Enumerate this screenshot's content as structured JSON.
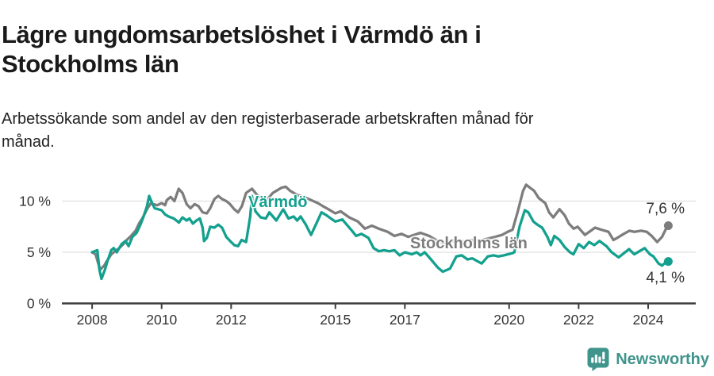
{
  "colors": {
    "grid": "#e0e0e0",
    "axis": "#3c3c3c",
    "axis_text": "#333333",
    "title_text": "#1a1a1a",
    "brand_teal": "#3F948C"
  },
  "footer": {
    "brand": "Newsworthy"
  },
  "chart_data": {
    "type": "line",
    "title_line1": "Lägre ungdomsarbetslöshet i Värmdö än i",
    "title_line2": "Stockholms län",
    "subtitle_line1": "Arbetssökande som andel av den registerbaserade arbetskraften månad för",
    "subtitle_line2": "månad.",
    "xlabel": "",
    "ylabel": "",
    "grid": "horizontal",
    "legend_position": "inline-labels",
    "xlim": [
      2007.13,
      2025.37
    ],
    "ylim": [
      0,
      12.4
    ],
    "x_ticks": [
      2008,
      2010,
      2012,
      2015,
      2017,
      2020,
      2022,
      2024
    ],
    "y_ticks": [
      0,
      5,
      10
    ],
    "y_tick_labels": [
      "0 %",
      "5 %",
      "10 %"
    ],
    "series": [
      {
        "name": "Värmdö",
        "color": "#13A08E",
        "end_label": "4,1 %",
        "end_value": 4.1,
        "points": [
          [
            2008.0,
            5.0
          ],
          [
            2008.08,
            5.1
          ],
          [
            2008.15,
            5.2
          ],
          [
            2008.21,
            3.3
          ],
          [
            2008.27,
            2.4
          ],
          [
            2008.37,
            3.3
          ],
          [
            2008.43,
            4.0
          ],
          [
            2008.55,
            5.2
          ],
          [
            2008.62,
            5.4
          ],
          [
            2008.71,
            5.0
          ],
          [
            2008.85,
            5.8
          ],
          [
            2008.96,
            6.1
          ],
          [
            2009.05,
            5.6
          ],
          [
            2009.16,
            6.5
          ],
          [
            2009.28,
            6.9
          ],
          [
            2009.39,
            7.7
          ],
          [
            2009.46,
            8.3
          ],
          [
            2009.58,
            9.5
          ],
          [
            2009.64,
            10.5
          ],
          [
            2009.74,
            9.7
          ],
          [
            2009.8,
            9.3
          ],
          [
            2010.0,
            9.1
          ],
          [
            2010.1,
            8.7
          ],
          [
            2010.2,
            8.5
          ],
          [
            2010.35,
            8.3
          ],
          [
            2010.5,
            7.9
          ],
          [
            2010.6,
            8.4
          ],
          [
            2010.72,
            8.1
          ],
          [
            2010.8,
            8.3
          ],
          [
            2010.9,
            7.8
          ],
          [
            2011.0,
            8.1
          ],
          [
            2011.1,
            8.3
          ],
          [
            2011.18,
            7.4
          ],
          [
            2011.22,
            6.1
          ],
          [
            2011.3,
            6.4
          ],
          [
            2011.4,
            7.5
          ],
          [
            2011.52,
            7.4
          ],
          [
            2011.63,
            7.7
          ],
          [
            2011.74,
            7.4
          ],
          [
            2011.86,
            6.5
          ],
          [
            2011.97,
            6.1
          ],
          [
            2012.09,
            5.7
          ],
          [
            2012.2,
            5.6
          ],
          [
            2012.3,
            6.2
          ],
          [
            2012.43,
            6.0
          ],
          [
            2012.55,
            8.5
          ],
          [
            2012.6,
            10.5
          ],
          [
            2012.7,
            9.0
          ],
          [
            2012.85,
            8.4
          ],
          [
            2013.0,
            8.3
          ],
          [
            2013.1,
            8.9
          ],
          [
            2013.3,
            8.1
          ],
          [
            2013.5,
            9.2
          ],
          [
            2013.65,
            8.3
          ],
          [
            2013.8,
            8.5
          ],
          [
            2013.9,
            8.1
          ],
          [
            2014.0,
            8.5
          ],
          [
            2014.15,
            7.7
          ],
          [
            2014.3,
            6.7
          ],
          [
            2014.45,
            7.8
          ],
          [
            2014.6,
            8.9
          ],
          [
            2014.75,
            8.6
          ],
          [
            2014.87,
            8.3
          ],
          [
            2015.0,
            8.0
          ],
          [
            2015.2,
            8.2
          ],
          [
            2015.45,
            7.2
          ],
          [
            2015.6,
            6.6
          ],
          [
            2015.75,
            6.8
          ],
          [
            2015.95,
            6.4
          ],
          [
            2016.1,
            5.4
          ],
          [
            2016.25,
            5.1
          ],
          [
            2016.4,
            5.2
          ],
          [
            2016.55,
            5.1
          ],
          [
            2016.7,
            5.2
          ],
          [
            2016.85,
            4.7
          ],
          [
            2017.0,
            5.0
          ],
          [
            2017.2,
            4.8
          ],
          [
            2017.34,
            5.0
          ],
          [
            2017.45,
            4.7
          ],
          [
            2017.57,
            5.0
          ],
          [
            2017.75,
            4.3
          ],
          [
            2017.95,
            3.5
          ],
          [
            2018.09,
            3.1
          ],
          [
            2018.3,
            3.4
          ],
          [
            2018.48,
            4.6
          ],
          [
            2018.64,
            4.7
          ],
          [
            2018.8,
            4.3
          ],
          [
            2018.94,
            4.4
          ],
          [
            2019.1,
            4.1
          ],
          [
            2019.21,
            3.9
          ],
          [
            2019.39,
            4.6
          ],
          [
            2019.55,
            4.7
          ],
          [
            2019.69,
            4.6
          ],
          [
            2019.85,
            4.7
          ],
          [
            2019.96,
            4.8
          ],
          [
            2020.08,
            4.9
          ],
          [
            2020.15,
            5.0
          ],
          [
            2020.3,
            7.5
          ],
          [
            2020.45,
            9.1
          ],
          [
            2020.55,
            8.9
          ],
          [
            2020.7,
            8.0
          ],
          [
            2020.81,
            7.7
          ],
          [
            2020.95,
            7.4
          ],
          [
            2021.1,
            6.5
          ],
          [
            2021.2,
            5.7
          ],
          [
            2021.3,
            6.6
          ],
          [
            2021.45,
            6.2
          ],
          [
            2021.6,
            5.5
          ],
          [
            2021.75,
            5.0
          ],
          [
            2021.85,
            4.8
          ],
          [
            2022.0,
            5.8
          ],
          [
            2022.15,
            5.4
          ],
          [
            2022.3,
            6.0
          ],
          [
            2022.45,
            5.7
          ],
          [
            2022.6,
            6.1
          ],
          [
            2022.8,
            5.6
          ],
          [
            2022.95,
            5.0
          ],
          [
            2023.15,
            4.5
          ],
          [
            2023.3,
            4.9
          ],
          [
            2023.45,
            5.3
          ],
          [
            2023.6,
            4.8
          ],
          [
            2023.75,
            5.1
          ],
          [
            2023.9,
            5.4
          ],
          [
            2024.05,
            4.8
          ],
          [
            2024.15,
            4.6
          ],
          [
            2024.3,
            3.9
          ],
          [
            2024.4,
            3.7
          ],
          [
            2024.5,
            4.0
          ],
          [
            2024.58,
            4.1
          ]
        ]
      },
      {
        "name": "Stockholms län",
        "color": "#7D7D7D",
        "end_label": "7,6 %",
        "end_value": 7.6,
        "points": [
          [
            2008.0,
            5.0
          ],
          [
            2008.1,
            4.8
          ],
          [
            2008.23,
            3.3
          ],
          [
            2008.35,
            3.7
          ],
          [
            2008.4,
            4.0
          ],
          [
            2008.55,
            4.8
          ],
          [
            2008.66,
            5.1
          ],
          [
            2008.78,
            5.4
          ],
          [
            2008.9,
            5.8
          ],
          [
            2009.0,
            6.2
          ],
          [
            2009.12,
            6.6
          ],
          [
            2009.25,
            7.1
          ],
          [
            2009.35,
            7.8
          ],
          [
            2009.46,
            8.4
          ],
          [
            2009.58,
            9.2
          ],
          [
            2009.69,
            9.8
          ],
          [
            2009.76,
            9.7
          ],
          [
            2009.87,
            9.6
          ],
          [
            2010.0,
            9.8
          ],
          [
            2010.1,
            9.6
          ],
          [
            2010.15,
            10.1
          ],
          [
            2010.26,
            10.4
          ],
          [
            2010.37,
            10.0
          ],
          [
            2010.49,
            11.2
          ],
          [
            2010.6,
            10.8
          ],
          [
            2010.72,
            9.7
          ],
          [
            2010.83,
            9.3
          ],
          [
            2010.95,
            9.7
          ],
          [
            2011.06,
            9.5
          ],
          [
            2011.18,
            8.9
          ],
          [
            2011.3,
            8.8
          ],
          [
            2011.4,
            9.3
          ],
          [
            2011.52,
            10.2
          ],
          [
            2011.63,
            10.5
          ],
          [
            2011.74,
            10.2
          ],
          [
            2011.86,
            10.0
          ],
          [
            2011.97,
            9.7
          ],
          [
            2012.09,
            9.2
          ],
          [
            2012.2,
            8.9
          ],
          [
            2012.31,
            9.5
          ],
          [
            2012.43,
            10.8
          ],
          [
            2012.6,
            11.2
          ],
          [
            2012.75,
            10.6
          ],
          [
            2012.89,
            10.1
          ],
          [
            2013.0,
            10.0
          ],
          [
            2013.2,
            10.8
          ],
          [
            2013.45,
            11.3
          ],
          [
            2013.57,
            11.4
          ],
          [
            2013.7,
            11.0
          ],
          [
            2013.9,
            10.6
          ],
          [
            2014.1,
            10.4
          ],
          [
            2014.3,
            10.1
          ],
          [
            2014.5,
            9.8
          ],
          [
            2014.64,
            9.5
          ],
          [
            2014.8,
            9.2
          ],
          [
            2015.0,
            8.8
          ],
          [
            2015.15,
            9.0
          ],
          [
            2015.4,
            8.4
          ],
          [
            2015.65,
            8.0
          ],
          [
            2015.85,
            7.3
          ],
          [
            2016.05,
            7.6
          ],
          [
            2016.25,
            7.3
          ],
          [
            2016.5,
            7.0
          ],
          [
            2016.7,
            6.6
          ],
          [
            2016.9,
            6.8
          ],
          [
            2017.1,
            6.5
          ],
          [
            2017.45,
            6.9
          ],
          [
            2017.7,
            6.6
          ],
          [
            2017.9,
            6.2
          ],
          [
            2018.1,
            5.9
          ],
          [
            2018.35,
            6.1
          ],
          [
            2018.6,
            6.0
          ],
          [
            2018.85,
            6.2
          ],
          [
            2019.1,
            6.1
          ],
          [
            2019.35,
            6.3
          ],
          [
            2019.6,
            6.5
          ],
          [
            2019.8,
            6.7
          ],
          [
            2019.96,
            7.0
          ],
          [
            2020.1,
            7.2
          ],
          [
            2020.25,
            9.0
          ],
          [
            2020.4,
            11.0
          ],
          [
            2020.49,
            11.6
          ],
          [
            2020.6,
            11.3
          ],
          [
            2020.72,
            11.0
          ],
          [
            2020.85,
            10.3
          ],
          [
            2021.0,
            9.9
          ],
          [
            2021.04,
            9.8
          ],
          [
            2021.15,
            8.9
          ],
          [
            2021.27,
            8.4
          ],
          [
            2021.45,
            9.2
          ],
          [
            2021.6,
            8.6
          ],
          [
            2021.72,
            7.8
          ],
          [
            2021.86,
            7.3
          ],
          [
            2021.97,
            7.5
          ],
          [
            2022.1,
            7.0
          ],
          [
            2022.18,
            6.7
          ],
          [
            2022.35,
            7.1
          ],
          [
            2022.47,
            7.4
          ],
          [
            2022.65,
            7.2
          ],
          [
            2022.86,
            7.0
          ],
          [
            2023.0,
            6.2
          ],
          [
            2023.11,
            6.4
          ],
          [
            2023.3,
            6.8
          ],
          [
            2023.46,
            7.1
          ],
          [
            2023.6,
            7.0
          ],
          [
            2023.8,
            7.1
          ],
          [
            2023.96,
            7.0
          ],
          [
            2024.1,
            6.6
          ],
          [
            2024.26,
            6.0
          ],
          [
            2024.4,
            6.5
          ],
          [
            2024.5,
            7.2
          ],
          [
            2024.58,
            7.6
          ]
        ]
      }
    ]
  }
}
